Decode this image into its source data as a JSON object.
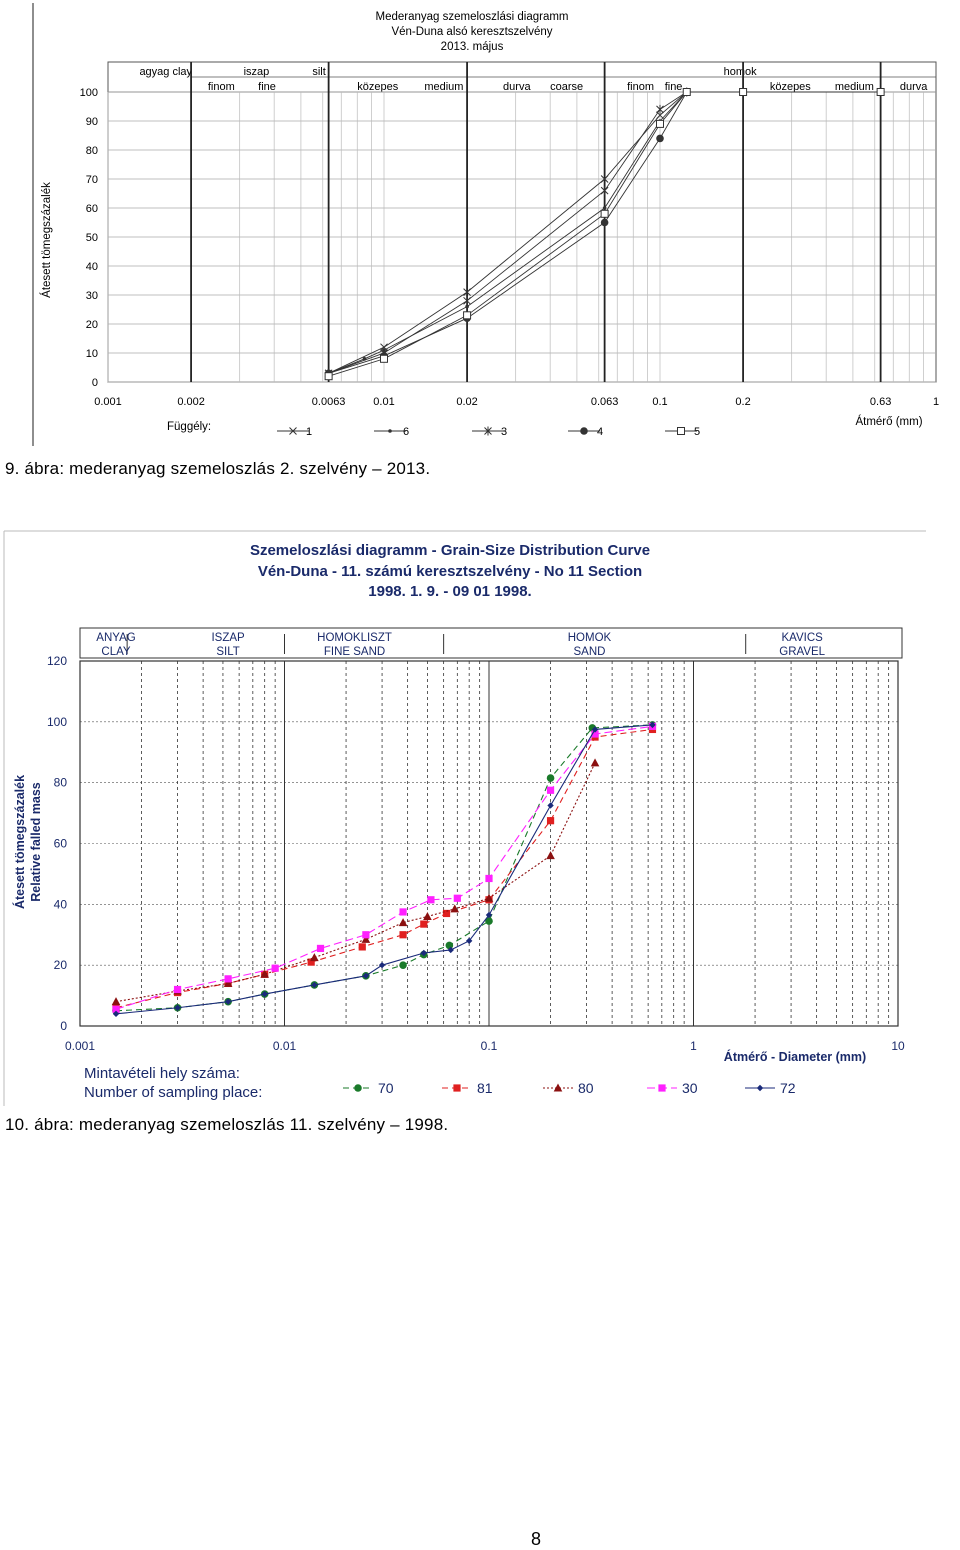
{
  "captions": {
    "fig9": "9. ábra: mederanyag szemeloszlás 2. szelvény – 2013.",
    "fig10": "10. ábra: mederanyag szemeloszlás 11. szelvény – 1998."
  },
  "page_number": "8",
  "chart_data": [
    {
      "type": "line",
      "title": [
        "Mederanyag szemeloszlási diagramm",
        "Vén-Duna alsó keresztszelvény",
        "2013. május"
      ],
      "xlabel": "Átmérő (mm)",
      "ylabel": "Átesett tömegszázalék",
      "x_scale": "log",
      "xlim": [
        0.001,
        1
      ],
      "ylim": [
        0,
        100
      ],
      "x_ticks": [
        {
          "value": 0.001,
          "label": "0.001"
        },
        {
          "value": 0.002,
          "label": "0.002"
        },
        {
          "value": 0.0063,
          "label": "0.0063"
        },
        {
          "value": 0.01,
          "label": "0.01"
        },
        {
          "value": 0.02,
          "label": "0.02"
        },
        {
          "value": 0.063,
          "label": "0.063"
        },
        {
          "value": 0.1,
          "label": "0.1"
        },
        {
          "value": 0.2,
          "label": "0.2"
        },
        {
          "value": 0.63,
          "label": "0.63"
        },
        {
          "value": 1,
          "label": "1"
        }
      ],
      "y_ticks": [
        0,
        10,
        20,
        30,
        40,
        50,
        60,
        70,
        80,
        90,
        100
      ],
      "grid": true,
      "class_header": {
        "top": [
          {
            "x": 0.0013,
            "label": "agyag clay"
          },
          {
            "x": 0.0031,
            "label": "iszap"
          },
          {
            "x": 0.0055,
            "label": "silt"
          },
          {
            "x": 0.17,
            "label": "homok"
          }
        ],
        "bottom": [
          {
            "x": 0.0023,
            "label": "finom"
          },
          {
            "x": 0.0035,
            "label": "fine"
          },
          {
            "x": 0.008,
            "label": "közepes"
          },
          {
            "x": 0.014,
            "label": "medium"
          },
          {
            "x": 0.027,
            "label": "durva"
          },
          {
            "x": 0.04,
            "label": "coarse"
          },
          {
            "x": 0.076,
            "label": "finom"
          },
          {
            "x": 0.104,
            "label": "fine"
          },
          {
            "x": 0.25,
            "label": "közepes"
          },
          {
            "x": 0.43,
            "label": "medium"
          },
          {
            "x": 0.74,
            "label": "durva"
          }
        ],
        "dividers": [
          0.002,
          0.0063,
          0.02,
          0.063,
          0.2,
          0.63
        ]
      },
      "legend_title": "Függély:",
      "legend_position": "bottom",
      "series": [
        {
          "name": "1",
          "marker": "x",
          "color": "#333333",
          "x": [
            0.0063,
            0.01,
            0.02,
            0.063,
            0.1,
            0.125
          ],
          "y": [
            3,
            12,
            31,
            70,
            92,
            100
          ]
        },
        {
          "name": "6",
          "marker": "dot",
          "color": "#333333",
          "x": [
            0.0063,
            0.0085,
            0.01,
            0.02,
            0.063,
            0.1,
            0.125
          ],
          "y": [
            3,
            8,
            11,
            26,
            60,
            90,
            100
          ]
        },
        {
          "name": "3",
          "marker": "star",
          "color": "#333333",
          "x": [
            0.0063,
            0.01,
            0.02,
            0.063,
            0.1,
            0.125
          ],
          "y": [
            3,
            10,
            28,
            66,
            94,
            100
          ]
        },
        {
          "name": "4",
          "marker": "circle",
          "color": "#333333",
          "x": [
            0.0063,
            0.01,
            0.02,
            0.063,
            0.1,
            0.125
          ],
          "y": [
            3,
            9,
            22,
            55,
            84,
            100
          ]
        },
        {
          "name": "5",
          "marker": "square",
          "color": "#333333",
          "x": [
            0.0063,
            0.01,
            0.02,
            0.063,
            0.1,
            0.125,
            0.2,
            0.63
          ],
          "y": [
            2,
            8,
            23,
            58,
            89,
            100,
            100,
            100
          ]
        }
      ]
    },
    {
      "type": "line",
      "title": [
        "Szemeloszlási diagramm - Grain-Size Distribution Curve",
        "Vén-Duna - 11. számú keresztszelvény - No 11 Section",
        "1998. 1. 9. - 09 01 1998."
      ],
      "xlabel": "Átmérő - Diameter (mm)",
      "ylabel": [
        "Átesett tömegszázalék",
        "Relative falled mass"
      ],
      "x_scale": "log",
      "xlim": [
        0.001,
        10
      ],
      "ylim": [
        0,
        120
      ],
      "x_ticks": [
        {
          "value": 0.001,
          "label": "0.001"
        },
        {
          "value": 0.01,
          "label": "0.01"
        },
        {
          "value": 0.1,
          "label": "0.1"
        },
        {
          "value": 1,
          "label": "1"
        },
        {
          "value": 10,
          "label": "10"
        }
      ],
      "y_ticks": [
        0,
        20,
        40,
        60,
        80,
        100,
        120
      ],
      "grid": true,
      "class_header": [
        {
          "x": 0.0015,
          "label1": "ANYAG",
          "label2": "CLAY"
        },
        {
          "x": 0.0053,
          "label1": "ISZAP",
          "label2": "SILT"
        },
        {
          "x": 0.022,
          "label1": "HOMOKLISZT",
          "label2": "FINE SAND"
        },
        {
          "x": 0.31,
          "label1": "HOMOK",
          "label2": "SAND"
        },
        {
          "x": 3.4,
          "label1": "KAVICS",
          "label2": "GRAVEL"
        }
      ],
      "class_dividers": [
        0.0017,
        0.01,
        0.06,
        1.8
      ],
      "legend_title": [
        "Mintavételi hely száma:",
        "Number of sampling place:"
      ],
      "legend_position": "bottom",
      "series": [
        {
          "name": "70",
          "marker": "circle",
          "color": "#1a7a2a",
          "dash": "6,4",
          "x": [
            0.0015,
            0.003,
            0.0053,
            0.008,
            0.014,
            0.025,
            0.038,
            0.048,
            0.064,
            0.1,
            0.2,
            0.32,
            0.63
          ],
          "y": [
            5,
            6,
            8,
            10.5,
            13.5,
            16.5,
            20,
            23.5,
            26.5,
            34.5,
            81.5,
            98,
            99
          ]
        },
        {
          "name": "81",
          "marker": "square",
          "color": "#e02020",
          "dash": "6,4",
          "x": [
            0.0015,
            0.003,
            0.0053,
            0.008,
            0.0135,
            0.024,
            0.038,
            0.048,
            0.062,
            0.1,
            0.2,
            0.33,
            0.63
          ],
          "y": [
            6,
            11,
            14,
            17,
            21,
            26,
            30,
            33.5,
            37,
            41.5,
            67.5,
            95,
            97.5
          ]
        },
        {
          "name": "80",
          "marker": "triangle",
          "color": "#8b1010",
          "dash": "2,2",
          "x": [
            0.0015,
            0.003,
            0.0053,
            0.008,
            0.014,
            0.025,
            0.038,
            0.05,
            0.068,
            0.1,
            0.2,
            0.33
          ],
          "y": [
            8,
            11.5,
            14,
            17,
            22.5,
            28.5,
            34,
            36,
            38.5,
            42,
            56,
            86.5
          ]
        },
        {
          "name": "30",
          "marker": "square",
          "color": "#ff20ff",
          "dash": "8,4",
          "x": [
            0.0015,
            0.003,
            0.0053,
            0.009,
            0.015,
            0.025,
            0.038,
            0.052,
            0.07,
            0.1,
            0.2,
            0.33,
            0.63
          ],
          "y": [
            5.5,
            12,
            15.5,
            19,
            25.5,
            30,
            37.5,
            41.5,
            42,
            48.5,
            77.5,
            96,
            98.5
          ]
        },
        {
          "name": "72",
          "marker": "diamond",
          "color": "#1a2a7a",
          "dash": "",
          "x": [
            0.0015,
            0.003,
            0.0053,
            0.008,
            0.014,
            0.025,
            0.03,
            0.048,
            0.065,
            0.08,
            0.1,
            0.2,
            0.33,
            0.63
          ],
          "y": [
            4,
            6,
            8,
            10.5,
            13.5,
            16.5,
            20,
            24,
            25,
            28,
            36.5,
            72.5,
            97.5,
            99
          ]
        }
      ]
    }
  ]
}
